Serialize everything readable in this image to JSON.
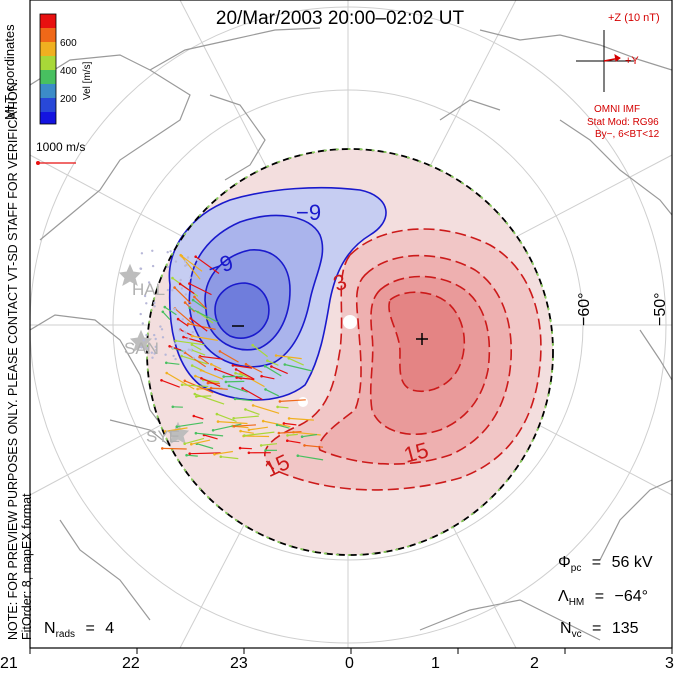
{
  "title": "20/Mar/2003 20:00–02:02 UT",
  "colorbar": {
    "label": "Vel [m/s]",
    "ticks": [
      "600",
      "400",
      "200"
    ],
    "colors": [
      "#e81010",
      "#f06818",
      "#f0b020",
      "#a8d838",
      "#48c060",
      "#3c8cc8",
      "#2848d8",
      "#1414e0"
    ]
  },
  "coords_label": "MLT coordinates",
  "scale_vector_label": "1000 m/s",
  "note": {
    "line1": "NOTE: FOR PREVIEW PURPOSES ONLY. PLEASE CONTACT VT-SD STAFF FOR VERIFICATION.",
    "line2": "FitOrder: 8, mapEX format"
  },
  "imf": {
    "z_label": "+Z (10 nT)",
    "y_label": "+Y",
    "source": "OMNI IMF",
    "model": "Stat Mod: RG96",
    "condition": "By−, 6<BT<12"
  },
  "latitude_labels": [
    "−60°",
    "−50°"
  ],
  "mlt_ticks": [
    "21",
    "22",
    "23",
    "0",
    "1",
    "2",
    "3"
  ],
  "radar_labels": [
    "HAL",
    "SAN",
    "SYE"
  ],
  "contours": {
    "labels": [
      "−9",
      "−9",
      "3",
      "15",
      "15"
    ],
    "min_marker": "−",
    "max_marker": "+"
  },
  "stats": {
    "phi_pc_value": "56 kV",
    "lambda_hm_value": "−64°",
    "n_vc_value": "135",
    "n_rads_value": "4"
  }
}
